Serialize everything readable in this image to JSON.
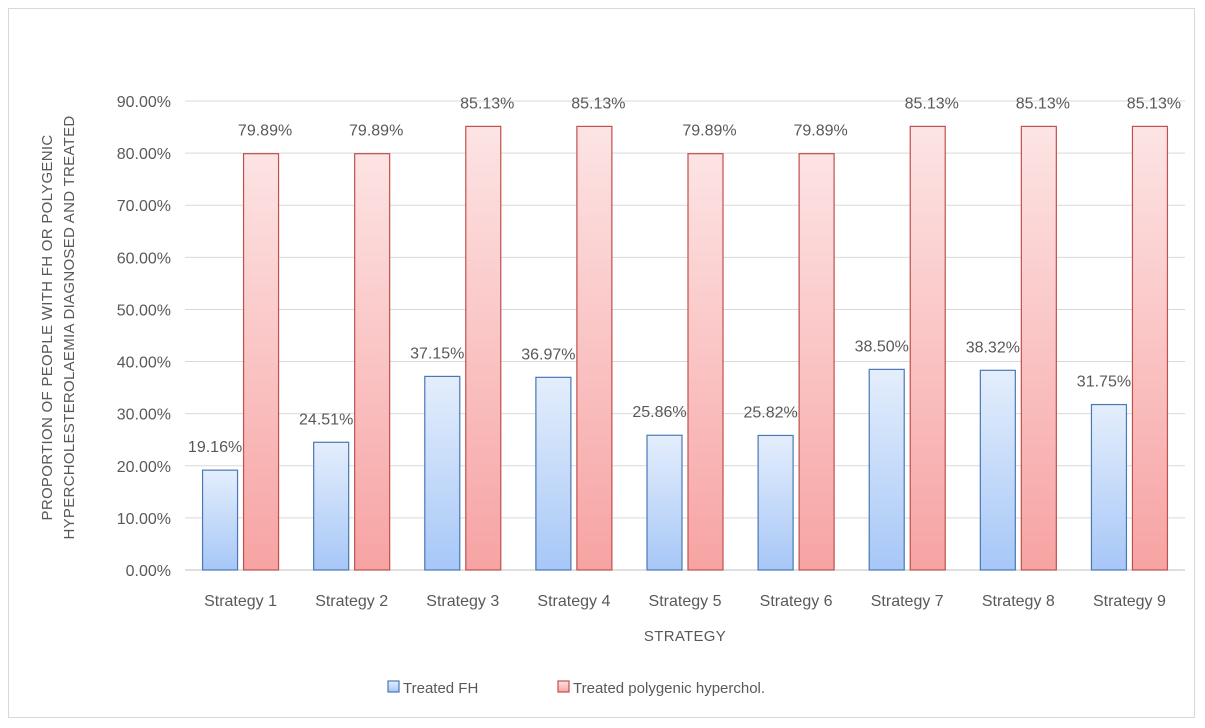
{
  "chart_data": {
    "type": "bar",
    "title": "",
    "xlabel": "STRATEGY",
    "ylabel_lines": [
      "PROPORTION OF PEOPLE WITH FH OR POLYGENIC",
      "HYPERCHOLESTEROLAEMIA DIAGNOSED AND TREATED"
    ],
    "categories": [
      "Strategy 1",
      "Strategy 2",
      "Strategy 3",
      "Strategy 4",
      "Strategy 5",
      "Strategy 6",
      "Strategy 7",
      "Strategy 8",
      "Strategy 9"
    ],
    "series": [
      {
        "name": "Treated FH",
        "values": [
          19.16,
          24.51,
          37.15,
          36.97,
          25.86,
          25.82,
          38.5,
          38.32,
          31.75
        ],
        "labels": [
          "19.16%",
          "24.51%",
          "37.15%",
          "36.97%",
          "25.86%",
          "25.82%",
          "38.50%",
          "38.32%",
          "31.75%"
        ],
        "color_top": "#e4eefc",
        "color_bottom": "#a7c7f7",
        "stroke": "#4a78b5"
      },
      {
        "name": "Treated polygenic hyperchol.",
        "values": [
          79.89,
          79.89,
          85.13,
          85.13,
          79.89,
          79.89,
          85.13,
          85.13,
          85.13
        ],
        "labels": [
          "79.89%",
          "79.89%",
          "85.13%",
          "85.13%",
          "79.89%",
          "79.89%",
          "85.13%",
          "85.13%",
          "85.13%"
        ],
        "color_top": "#fde4e4",
        "color_bottom": "#f7a3a3",
        "stroke": "#c0504d"
      }
    ],
    "ylim": [
      0,
      90
    ],
    "yticks": [
      0,
      10,
      20,
      30,
      40,
      50,
      60,
      70,
      80,
      90
    ],
    "ytick_labels": [
      "0.00%",
      "10.00%",
      "20.00%",
      "30.00%",
      "40.00%",
      "50.00%",
      "60.00%",
      "70.00%",
      "80.00%",
      "90.00%"
    ],
    "grid": true,
    "legend_position": "bottom"
  }
}
